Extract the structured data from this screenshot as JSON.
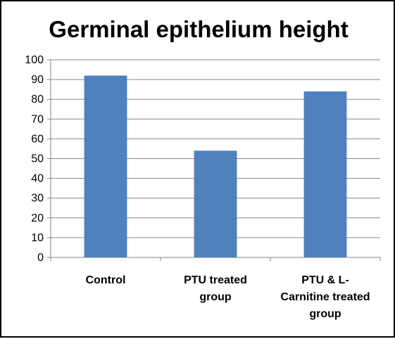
{
  "chart_data": {
    "type": "bar",
    "title": "Germinal epithelium height",
    "categories": [
      [
        "Control"
      ],
      [
        "PTU treated",
        "group"
      ],
      [
        "PTU & L-",
        "Carnitine treated",
        "group"
      ]
    ],
    "values": [
      92,
      54,
      84
    ],
    "ylim": [
      0,
      100
    ],
    "yticks": [
      "0",
      "10",
      "20",
      "30",
      "40",
      "50",
      "60",
      "70",
      "80",
      "90",
      "100"
    ],
    "xlabel": "",
    "ylabel": "",
    "grid": true,
    "legend": "none",
    "bar_color": "#4F81BD",
    "grid_color": "#868686"
  }
}
